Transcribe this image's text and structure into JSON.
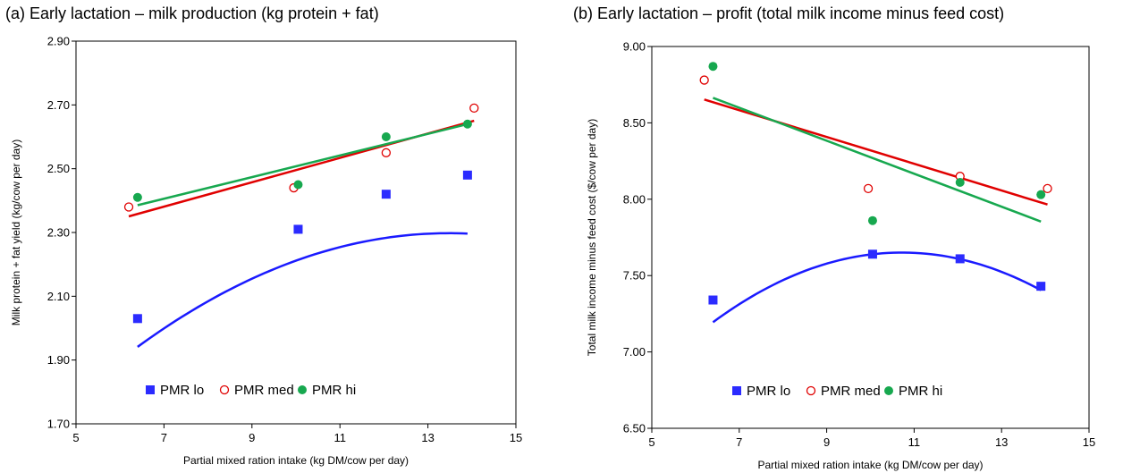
{
  "chart_data": [
    {
      "type": "scatter",
      "title": "(a) Early lactation – milk production (kg protein + fat)",
      "xlabel": "Partial mixed ration intake (kg DM/cow per day)",
      "ylabel": "Milk protein + fat yield (kg/cow per day)",
      "xlim": [
        5,
        15
      ],
      "ylim": [
        1.7,
        2.9
      ],
      "xticks": [
        5,
        7,
        9,
        11,
        13,
        15
      ],
      "xtick_labels": [
        "5",
        "7",
        "9",
        "11",
        "13",
        "15"
      ],
      "yticks": [
        1.7,
        1.9,
        2.1,
        2.3,
        2.5,
        2.7,
        2.9
      ],
      "ytick_labels": [
        "1.70",
        "1.90",
        "2.10",
        "2.30",
        "2.50",
        "2.70",
        "2.90"
      ],
      "grid": false,
      "legend_position": "bottom-center",
      "series": [
        {
          "name": "PMR lo",
          "marker": "square",
          "color": "#2b2bff",
          "x": [
            6.4,
            10.05,
            12.05,
            13.9
          ],
          "y": [
            2.03,
            2.31,
            2.42,
            2.48
          ],
          "trend": "quadratic",
          "trend_color": "#1a1aff",
          "trend_coef": [
            -0.00711,
            0.1917,
            1.0056
          ]
        },
        {
          "name": "PMR med",
          "marker": "open-circle",
          "color": "#e00000",
          "x": [
            6.2,
            9.95,
            12.05,
            14.05
          ],
          "y": [
            2.38,
            2.44,
            2.55,
            2.69
          ],
          "trend": "linear",
          "trend_color": "#e00000",
          "trend_range": [
            6.2,
            14.05
          ],
          "trend_coef": [
            0.0382,
            2.1136
          ]
        },
        {
          "name": "PMR hi",
          "marker": "filled-circle",
          "color": "#17a84f",
          "x": [
            6.4,
            10.05,
            12.05,
            13.9
          ],
          "y": [
            2.41,
            2.45,
            2.6,
            2.64
          ],
          "trend": "linear",
          "trend_color": "#17a84f",
          "trend_range": [
            6.4,
            13.9
          ],
          "trend_coef": [
            0.0339,
            2.1685
          ]
        }
      ]
    },
    {
      "type": "scatter",
      "title": "(b) Early lactation – profit (total milk income minus feed cost)",
      "xlabel": "Partial mixed ration intake (kg DM/cow per day)",
      "ylabel": "Total milk income minus feed cost ($/cow per day)",
      "xlim": [
        5,
        15
      ],
      "ylim": [
        6.5,
        9.0
      ],
      "xticks": [
        5,
        7,
        9,
        11,
        13,
        15
      ],
      "xtick_labels": [
        "5",
        "7",
        "9",
        "11",
        "13",
        "15"
      ],
      "yticks": [
        6.5,
        7.0,
        7.5,
        8.0,
        8.5,
        9.0
      ],
      "ytick_labels": [
        "6.50",
        "7.00",
        "7.50",
        "8.00",
        "8.50",
        "9.00"
      ],
      "grid": false,
      "legend_position": "bottom-center",
      "series": [
        {
          "name": "PMR lo",
          "marker": "square",
          "color": "#2b2bff",
          "x": [
            6.4,
            10.05,
            12.05,
            13.9
          ],
          "y": [
            7.34,
            7.64,
            7.61,
            7.43
          ],
          "trend": "quadratic",
          "trend_color": "#1a1aff",
          "trend_coef": [
            -0.0244,
            0.5233,
            4.845
          ]
        },
        {
          "name": "PMR med",
          "marker": "open-circle",
          "color": "#e00000",
          "x": [
            6.2,
            9.95,
            12.05,
            14.05
          ],
          "y": [
            8.78,
            8.07,
            8.15,
            8.07
          ],
          "trend": "linear",
          "trend_color": "#e00000",
          "trend_range": [
            6.2,
            14.05
          ],
          "trend_coef": [
            -0.0876,
            9.196
          ]
        },
        {
          "name": "PMR hi",
          "marker": "filled-circle",
          "color": "#17a84f",
          "x": [
            6.4,
            10.05,
            12.05,
            13.9
          ],
          "y": [
            8.87,
            7.86,
            8.11,
            8.03
          ],
          "trend": "linear",
          "trend_color": "#17a84f",
          "trend_range": [
            6.4,
            13.9
          ],
          "trend_coef": [
            -0.108,
            9.355
          ]
        }
      ]
    }
  ]
}
